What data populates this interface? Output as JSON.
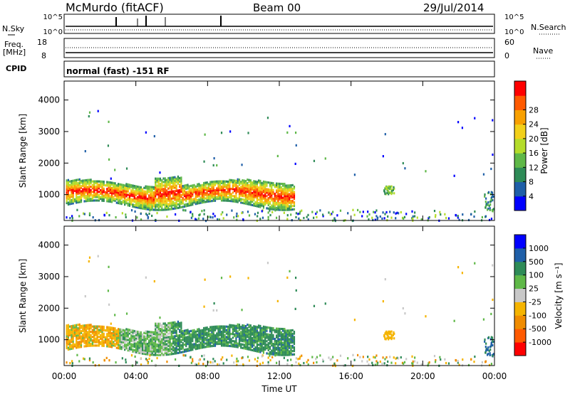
{
  "header": {
    "title": "McMurdo (fitACF)",
    "beam": "Beam 00",
    "date": "29/Jul/2014"
  },
  "top_panels": {
    "nsky_label": "N.Sky",
    "nsearch_label": "N.Search",
    "noise_ticks": [
      "10^5",
      "10^0"
    ],
    "freq_label": "Freq.",
    "freq_unit": "[MHz]",
    "freq_ticks": [
      "18",
      "8"
    ],
    "nave_label": "Nave",
    "nave_ticks": [
      "60",
      "0"
    ],
    "cpid_label": "CPID",
    "cpid_text": "normal (fast) -151 RF"
  },
  "colors": {
    "power": [
      "#0000ff",
      "#1f5fa8",
      "#2e8b57",
      "#5fb848",
      "#b4dc2a",
      "#f2d01a",
      "#f8a000",
      "#ff5a00",
      "#ff0000"
    ],
    "velocity": [
      "#ff0000",
      "#ff5a00",
      "#f08c00",
      "#f5b400",
      "#c8c8c8",
      "#5fb848",
      "#2e8b57",
      "#1f5fa8",
      "#0000ff"
    ]
  },
  "chart_data": [
    {
      "type": "heatmap",
      "name": "power",
      "ylabel": "Slant Range [km]",
      "ylim": [
        180,
        4600
      ],
      "yticks": [
        "1000",
        "2000",
        "3000",
        "4000"
      ],
      "colorbar_label": "Power [dB]",
      "colorbar_ticks": [
        "4",
        "8",
        "12",
        "16",
        "20",
        "24",
        "28"
      ],
      "colorbar_range": [
        0,
        32
      ]
    },
    {
      "type": "heatmap",
      "name": "velocity",
      "ylabel": "Slant Range [km]",
      "ylim": [
        180,
        4600
      ],
      "yticks": [
        "1000",
        "2000",
        "3000",
        "4000"
      ],
      "colorbar_label": "Velocity [m s⁻¹]",
      "colorbar_ticks": [
        "1000",
        "500",
        "100",
        "25",
        "-25",
        "-100",
        "-500",
        "-1000"
      ]
    }
  ],
  "xaxis": {
    "label": "Time UT",
    "ticks": [
      "00:00",
      "04:00",
      "08:00",
      "12:00",
      "16:00",
      "20:00",
      "00:00"
    ],
    "range_hours": [
      0,
      24
    ]
  }
}
